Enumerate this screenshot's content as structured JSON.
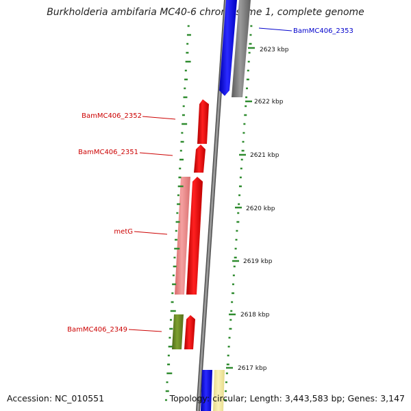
{
  "title": "Burkholderia ambifaria MC40-6 chromosome 1, complete genome",
  "footer": {
    "accession": "Accession: NC_010551",
    "topology": "Topology: circular; Length: 3,443,583 bp; Genes: 3,147"
  },
  "colors": {
    "forward_gene": "#ff0000",
    "forward_gene_alt": "#f08080",
    "reverse_gene": "#0000ff",
    "gray_feature": "#808080",
    "olive_feature": "#6b8e23",
    "yellow_feature": "#f0e68c",
    "tick_color": "#2e8b2e",
    "label_red": "#cc0000",
    "label_blue": "#0000cc"
  },
  "tick_labels": [
    "2623 kbp",
    "2622 kbp",
    "2621 kbp",
    "2620 kbp",
    "2619 kbp",
    "2618 kbp",
    "2617 kbp"
  ],
  "gene_labels": [
    {
      "text": "BamMC406_2353",
      "color": "blue"
    },
    {
      "text": "BamMC406_2352",
      "color": "red"
    },
    {
      "text": "BamMC406_2351",
      "color": "red"
    },
    {
      "text": "metG",
      "color": "red"
    },
    {
      "text": "BamMC406_2349",
      "color": "red"
    }
  ]
}
